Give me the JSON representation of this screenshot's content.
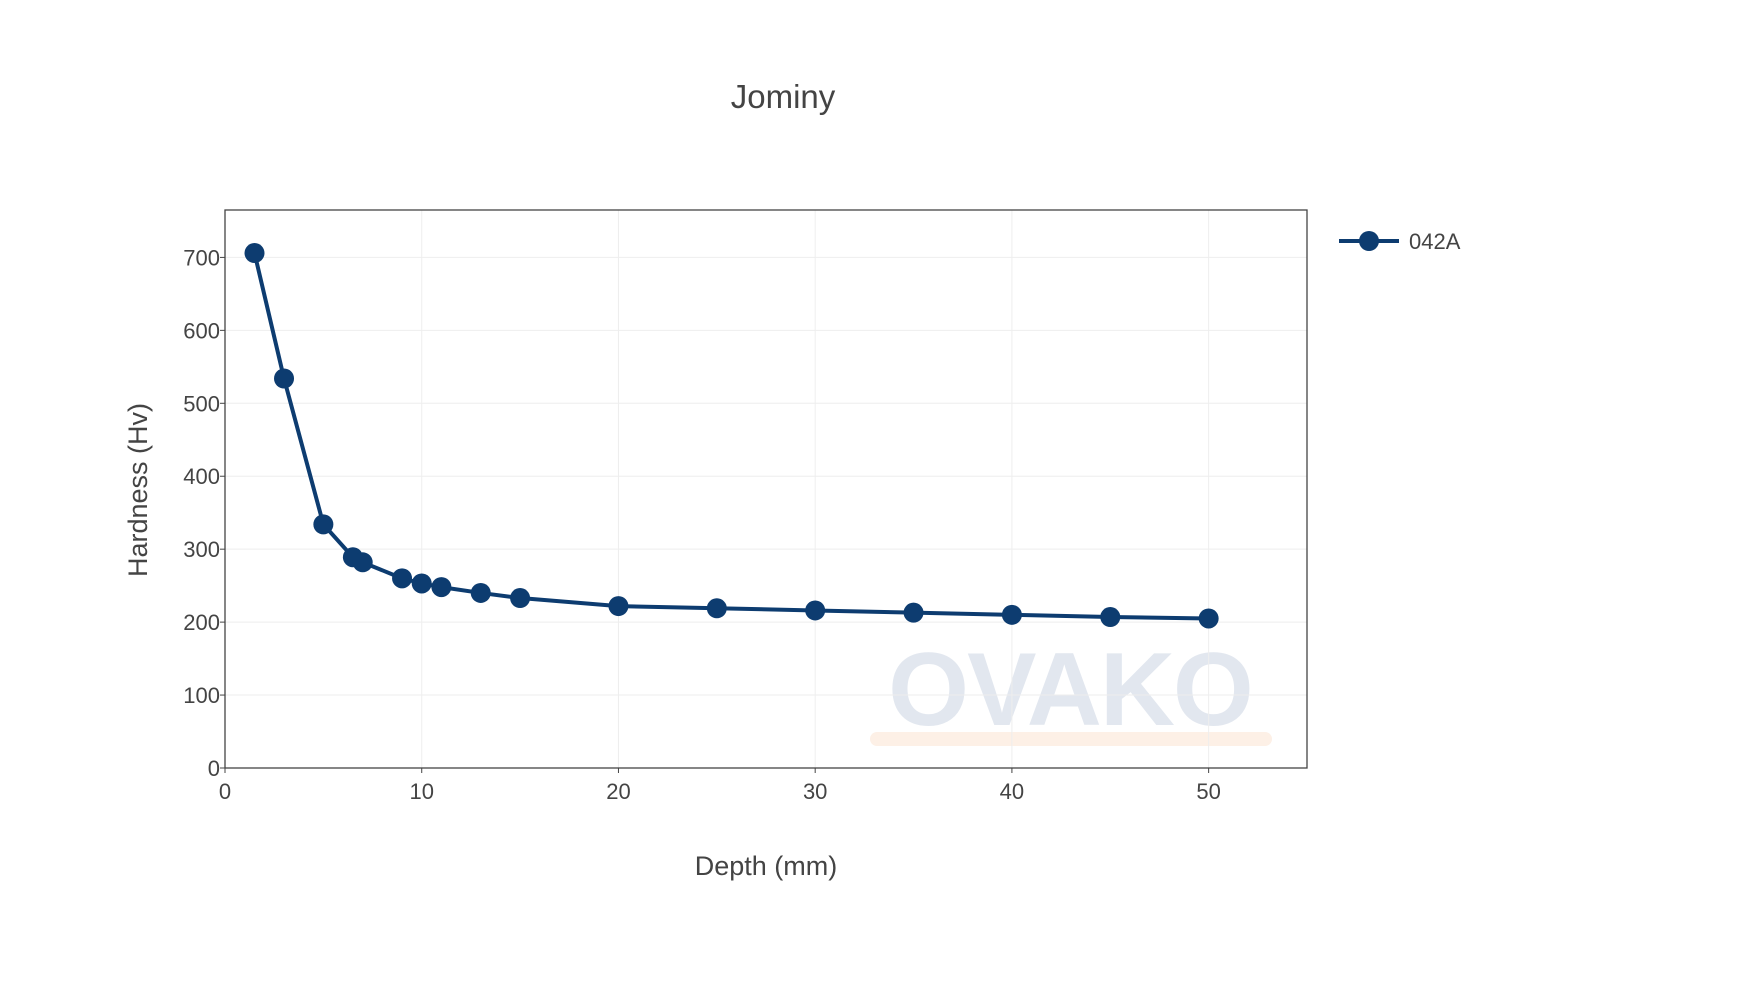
{
  "chart_data": {
    "type": "line",
    "title": "Jominy",
    "xlabel": "Depth (mm)",
    "ylabel": "Hardness (Hv)",
    "xlim": [
      0,
      55
    ],
    "ylim": [
      0,
      765
    ],
    "xticks": [
      0,
      10,
      20,
      30,
      40,
      50
    ],
    "yticks": [
      0,
      100,
      200,
      300,
      400,
      500,
      600,
      700
    ],
    "grid": true,
    "legend_position": "top-right outside",
    "series": [
      {
        "name": "042A",
        "color": "#0d3c70",
        "marker": "circle",
        "x": [
          1.5,
          3,
          5,
          6.5,
          7,
          9,
          10,
          11,
          13,
          15,
          20,
          25,
          30,
          35,
          40,
          45,
          50
        ],
        "y": [
          706,
          534,
          334,
          289,
          282,
          260,
          253,
          248,
          240,
          233,
          222,
          219,
          216,
          213,
          210,
          207,
          205
        ]
      }
    ]
  },
  "watermark": {
    "text": "OVAKO",
    "color": "#e2e7ef",
    "underline_color": "#fdf0e6"
  },
  "style": {
    "plot_border_color": "#444444",
    "grid_color": "#eeeeee"
  }
}
